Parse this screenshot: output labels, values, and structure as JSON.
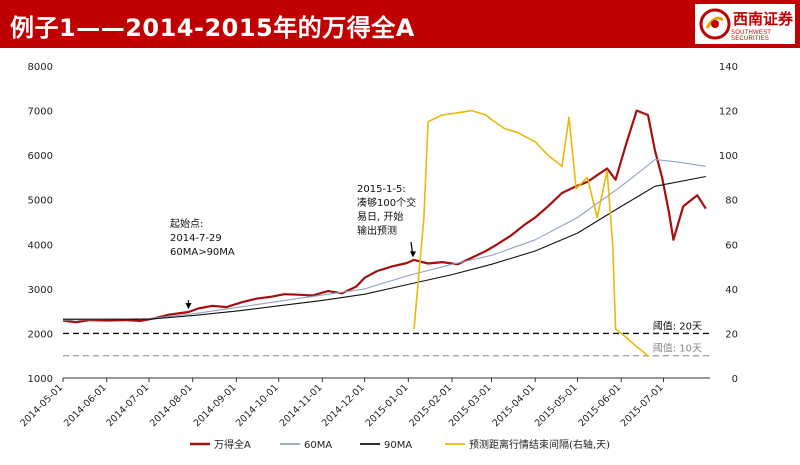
{
  "header": {
    "title": "例子1——2014-2015年的万得全A",
    "brand_cn": "西南证券",
    "brand_en": "SOUTHWEST SECURITIES",
    "accent": "#c00000"
  },
  "annotations": [
    {
      "lines": [
        "起始点:",
        "2014-7-29",
        "60MA>90MA"
      ]
    },
    {
      "lines": [
        "2015-1-5:",
        "凑够100个交",
        "易日, 开始",
        "输出预测"
      ]
    }
  ],
  "chart_data": {
    "type": "line",
    "title": "",
    "xlabel": "",
    "ylabel": "",
    "x_ticks": [
      "2014-05-01",
      "2014-06-01",
      "2014-07-01",
      "2014-08-01",
      "2014-09-01",
      "2014-10-01",
      "2014-11-01",
      "2014-12-01",
      "2015-01-01",
      "2015-02-01",
      "2015-03-01",
      "2015-04-01",
      "2015-05-01",
      "2015-06-01",
      "2015-07-01"
    ],
    "ylim_left": [
      1000,
      8000
    ],
    "yticks_left": [
      1000,
      2000,
      3000,
      4000,
      5000,
      6000,
      7000,
      8000
    ],
    "ylim_right": [
      0,
      140
    ],
    "yticks_right": [
      0,
      20,
      40,
      60,
      80,
      100,
      120,
      140
    ],
    "grid": false,
    "legend_position": "bottom",
    "thresholds": [
      {
        "label": "阈值: 20天",
        "value": 20,
        "style": "dashed",
        "color": "#111111"
      },
      {
        "label": "阈值: 10天",
        "value": 10,
        "style": "dashed",
        "color": "#999999"
      }
    ],
    "series": [
      {
        "name": "万得全A",
        "axis": "left",
        "color": "#a50f0f",
        "points": [
          [
            "2014-05-01",
            2290
          ],
          [
            "2014-05-10",
            2250
          ],
          [
            "2014-05-20",
            2300
          ],
          [
            "2014-06-01",
            2290
          ],
          [
            "2014-06-15",
            2300
          ],
          [
            "2014-06-25",
            2280
          ],
          [
            "2014-07-05",
            2340
          ],
          [
            "2014-07-15",
            2420
          ],
          [
            "2014-07-29",
            2480
          ],
          [
            "2014-08-05",
            2560
          ],
          [
            "2014-08-15",
            2620
          ],
          [
            "2014-08-25",
            2590
          ],
          [
            "2014-09-05",
            2700
          ],
          [
            "2014-09-15",
            2780
          ],
          [
            "2014-09-25",
            2820
          ],
          [
            "2014-10-05",
            2880
          ],
          [
            "2014-10-15",
            2870
          ],
          [
            "2014-10-25",
            2850
          ],
          [
            "2014-11-05",
            2950
          ],
          [
            "2014-11-15",
            2900
          ],
          [
            "2014-11-25",
            3050
          ],
          [
            "2014-12-01",
            3250
          ],
          [
            "2014-12-10",
            3400
          ],
          [
            "2014-12-20",
            3500
          ],
          [
            "2014-12-31",
            3580
          ],
          [
            "2015-01-05",
            3650
          ],
          [
            "2015-01-15",
            3570
          ],
          [
            "2015-01-25",
            3600
          ],
          [
            "2015-02-05",
            3550
          ],
          [
            "2015-02-15",
            3700
          ],
          [
            "2015-02-25",
            3850
          ],
          [
            "2015-03-05",
            4000
          ],
          [
            "2015-03-15",
            4200
          ],
          [
            "2015-03-25",
            4450
          ],
          [
            "2015-04-01",
            4600
          ],
          [
            "2015-04-10",
            4850
          ],
          [
            "2015-04-20",
            5150
          ],
          [
            "2015-04-30",
            5300
          ],
          [
            "2015-05-08",
            5400
          ],
          [
            "2015-05-15",
            5550
          ],
          [
            "2015-05-22",
            5700
          ],
          [
            "2015-05-28",
            5450
          ],
          [
            "2015-06-05",
            6300
          ],
          [
            "2015-06-12",
            7000
          ],
          [
            "2015-06-20",
            6900
          ],
          [
            "2015-06-25",
            6100
          ],
          [
            "2015-06-30",
            5500
          ],
          [
            "2015-07-05",
            4700
          ],
          [
            "2015-07-08",
            4100
          ],
          [
            "2015-07-15",
            4850
          ],
          [
            "2015-07-25",
            5100
          ],
          [
            "2015-07-31",
            4800
          ]
        ]
      },
      {
        "name": "60MA",
        "axis": "left",
        "color": "#8ea4c4",
        "points": [
          [
            "2014-05-01",
            2300
          ],
          [
            "2014-07-01",
            2330
          ],
          [
            "2014-08-01",
            2440
          ],
          [
            "2014-09-01",
            2580
          ],
          [
            "2014-10-01",
            2720
          ],
          [
            "2014-11-01",
            2860
          ],
          [
            "2014-12-01",
            3000
          ],
          [
            "2015-01-01",
            3300
          ],
          [
            "2015-02-01",
            3550
          ],
          [
            "2015-03-01",
            3750
          ],
          [
            "2015-04-01",
            4100
          ],
          [
            "2015-05-01",
            4600
          ],
          [
            "2015-06-01",
            5300
          ],
          [
            "2015-06-25",
            5900
          ],
          [
            "2015-07-10",
            5850
          ],
          [
            "2015-07-31",
            5750
          ]
        ]
      },
      {
        "name": "90MA",
        "axis": "left",
        "color": "#111111",
        "points": [
          [
            "2014-05-01",
            2320
          ],
          [
            "2014-07-01",
            2320
          ],
          [
            "2014-08-01",
            2400
          ],
          [
            "2014-09-01",
            2500
          ],
          [
            "2014-10-01",
            2620
          ],
          [
            "2014-11-01",
            2740
          ],
          [
            "2014-12-01",
            2880
          ],
          [
            "2015-01-01",
            3100
          ],
          [
            "2015-02-01",
            3320
          ],
          [
            "2015-03-01",
            3550
          ],
          [
            "2015-04-01",
            3850
          ],
          [
            "2015-05-01",
            4250
          ],
          [
            "2015-06-01",
            4850
          ],
          [
            "2015-06-25",
            5300
          ],
          [
            "2015-07-31",
            5520
          ]
        ]
      },
      {
        "name": "预测距离行情结束间隔(右轴,天)",
        "axis": "right",
        "color": "#e8b90c",
        "points": [
          [
            "2015-01-05",
            22
          ],
          [
            "2015-01-12",
            72
          ],
          [
            "2015-01-15",
            115
          ],
          [
            "2015-01-25",
            118
          ],
          [
            "2015-02-05",
            119
          ],
          [
            "2015-02-15",
            120
          ],
          [
            "2015-02-25",
            118
          ],
          [
            "2015-03-01",
            116
          ],
          [
            "2015-03-10",
            112
          ],
          [
            "2015-03-20",
            110
          ],
          [
            "2015-04-01",
            106
          ],
          [
            "2015-04-10",
            100
          ],
          [
            "2015-04-20",
            95
          ],
          [
            "2015-04-25",
            117
          ],
          [
            "2015-04-30",
            85
          ],
          [
            "2015-05-08",
            90
          ],
          [
            "2015-05-15",
            72
          ],
          [
            "2015-05-22",
            93
          ],
          [
            "2015-05-26",
            60
          ],
          [
            "2015-05-28",
            22
          ],
          [
            "2015-06-05",
            18
          ],
          [
            "2015-06-12",
            14
          ],
          [
            "2015-06-18",
            11
          ],
          [
            "2015-06-20",
            9.5
          ]
        ]
      }
    ]
  }
}
